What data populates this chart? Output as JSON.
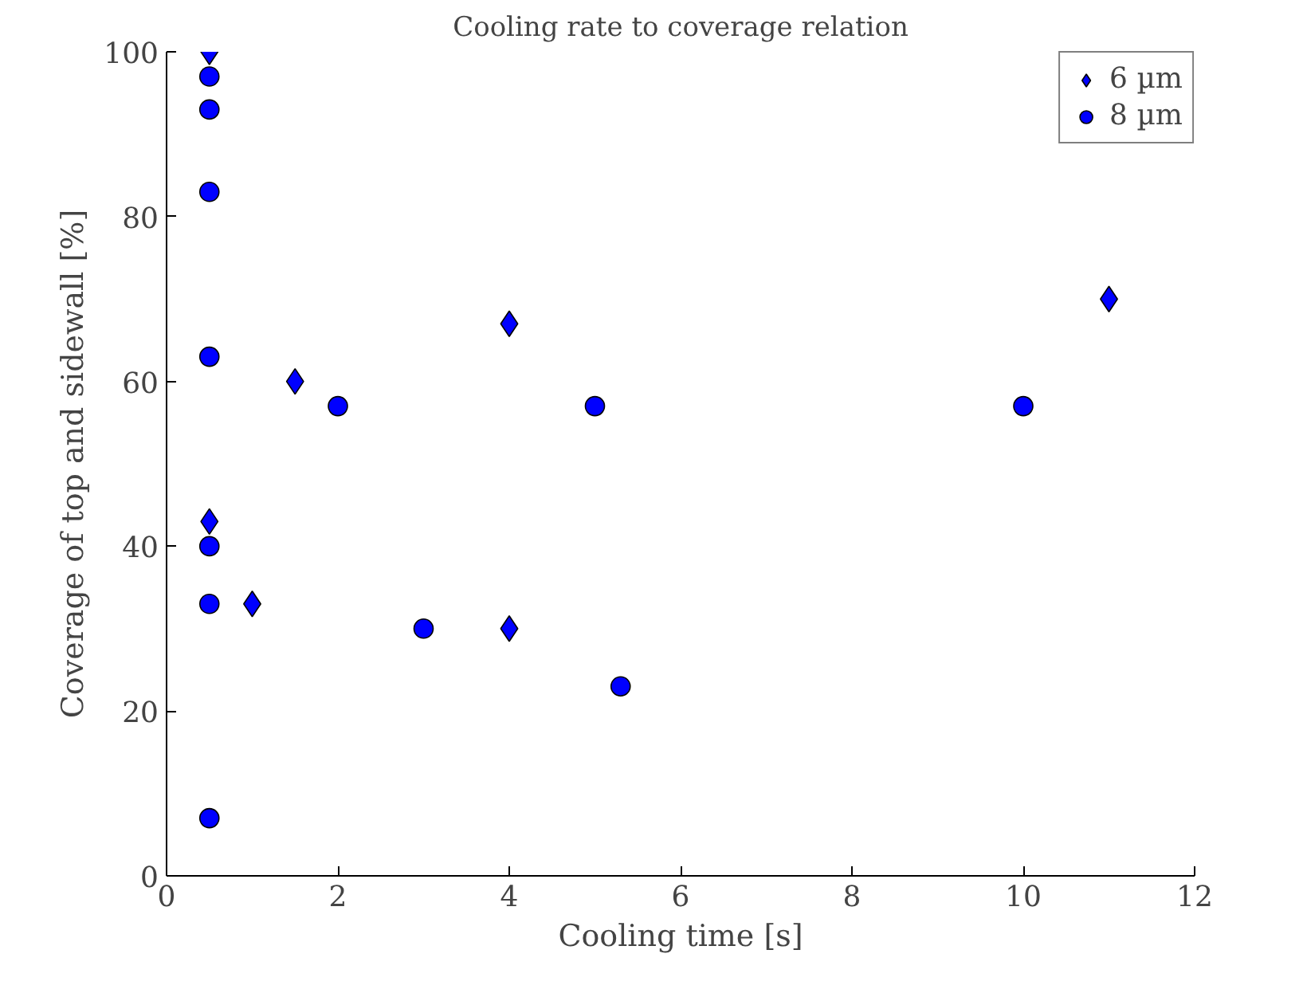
{
  "chart_data": {
    "type": "scatter",
    "title": "Cooling rate to coverage relation",
    "xlabel": "Cooling time [s]",
    "ylabel": "Coverage of top and sidewall [%]",
    "xlim": [
      0,
      12
    ],
    "xticks": [
      0,
      2,
      4,
      6,
      8,
      10,
      12
    ],
    "ylim": [
      0,
      100
    ],
    "yticks": [
      0,
      20,
      40,
      60,
      80,
      100
    ],
    "grid": false,
    "legend": "top right",
    "series": [
      {
        "name": "6 µm",
        "color": "#0000ff",
        "marker": "diamond",
        "x": [
          0.5,
          0.5,
          1,
          1.5,
          4,
          4,
          11
        ],
        "values": [
          100,
          43,
          33,
          60,
          67,
          30,
          70
        ]
      },
      {
        "name": "8 µm",
        "color": "#0000ff",
        "marker": "circle",
        "x": [
          0.5,
          0.5,
          0.5,
          0.5,
          0.5,
          0.5,
          0.5,
          2,
          3,
          5,
          5.3,
          10
        ],
        "values": [
          97,
          93,
          83,
          63,
          40,
          33,
          7,
          57,
          30,
          57,
          23,
          57
        ]
      }
    ]
  }
}
